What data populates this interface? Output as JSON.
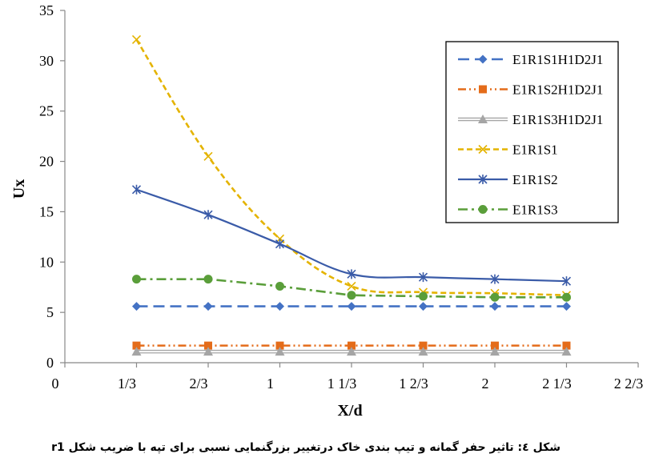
{
  "caption": "شکل ٤: تاثیر حفر گمانه و تیپ بندی خاک درتغییر بزرگنمایی نسبی برای تپه با ضریب شکل r1",
  "chart_data": {
    "type": "line",
    "xlabel": "X/d",
    "ylabel": "Ux",
    "ylim": [
      0,
      35
    ],
    "yticks": [
      0,
      5,
      10,
      15,
      20,
      25,
      30,
      35
    ],
    "xlim": [
      0,
      2.6667
    ],
    "xticks": [
      {
        "value": 0,
        "label": "0"
      },
      {
        "value": 0.3333,
        "label": "1/3"
      },
      {
        "value": 0.6667,
        "label": "2/3"
      },
      {
        "value": 1.0,
        "label": "1"
      },
      {
        "value": 1.3333,
        "label": "1 1/3"
      },
      {
        "value": 1.6667,
        "label": "1 2/3"
      },
      {
        "value": 2.0,
        "label": "2"
      },
      {
        "value": 2.3333,
        "label": "2 1/3"
      },
      {
        "value": 2.6667,
        "label": "2 2/3"
      }
    ],
    "x": [
      0.3333,
      0.6667,
      1.0,
      1.3333,
      1.6667,
      2.0,
      2.3333
    ],
    "legend_position": "right",
    "grid": false,
    "series": [
      {
        "name": "E1R1S1H1D2J1",
        "values": [
          5.6,
          5.6,
          5.6,
          5.6,
          5.6,
          5.6,
          5.6
        ],
        "color": "#4472C4",
        "marker": "diamond",
        "dash": "long-dash",
        "smooth": false
      },
      {
        "name": "E1R1S2H1D2J1",
        "values": [
          1.7,
          1.7,
          1.7,
          1.7,
          1.7,
          1.7,
          1.7
        ],
        "color": "#E46C1A",
        "marker": "square",
        "dash": "dash-dot-dot",
        "smooth": false
      },
      {
        "name": "E1R1S3H1D2J1",
        "values": [
          1.1,
          1.1,
          1.1,
          1.1,
          1.1,
          1.1,
          1.1
        ],
        "color": "#A5A5A5",
        "marker": "triangle",
        "dash": "double-solid",
        "smooth": false
      },
      {
        "name": "E1R1S1",
        "values": [
          32.1,
          20.5,
          12.3,
          7.6,
          7.0,
          6.9,
          6.7
        ],
        "color": "#E4B300",
        "marker": "x",
        "dash": "short-dash",
        "smooth": true
      },
      {
        "name": "E1R1S2",
        "values": [
          17.2,
          14.7,
          11.8,
          8.8,
          8.5,
          8.3,
          8.1
        ],
        "color": "#3A5BA8",
        "marker": "star",
        "dash": "solid",
        "smooth": true
      },
      {
        "name": "E1R1S3",
        "values": [
          8.3,
          8.3,
          7.6,
          6.7,
          6.6,
          6.5,
          6.5
        ],
        "color": "#5A9E3A",
        "marker": "circle",
        "dash": "dash-dot",
        "smooth": false
      }
    ]
  }
}
